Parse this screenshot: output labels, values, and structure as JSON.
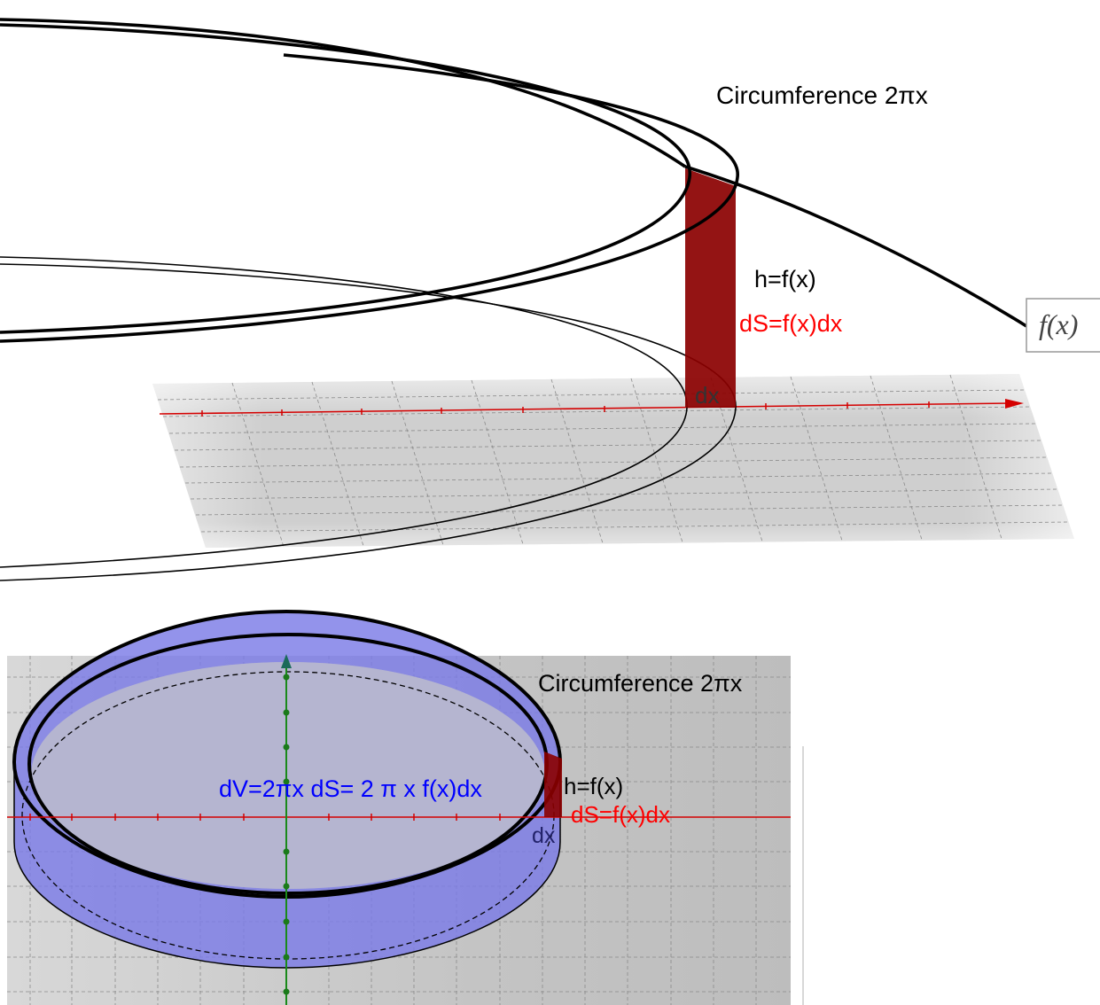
{
  "top_panel": {
    "circumference_label": "Circumference 2πx",
    "height_label": "h=f(x)",
    "area_label": "dS=f(x)dx",
    "dx_label": "dx",
    "function_label": "f(x)"
  },
  "bottom_panel": {
    "circumference_label": "Circumference 2πx",
    "volume_label": "dV=2πx dS= 2 π x f(x)dx",
    "height_label": "h=f(x)",
    "area_label": "dS=f(x)dx",
    "dx_label": "dx"
  },
  "colors": {
    "strip": "#8b0000",
    "shell": "#7b7be6",
    "axis_x": "#d40000",
    "axis_y": "#1a8a1a",
    "volume_text": "#0000ff",
    "area_text": "#ff0000"
  }
}
